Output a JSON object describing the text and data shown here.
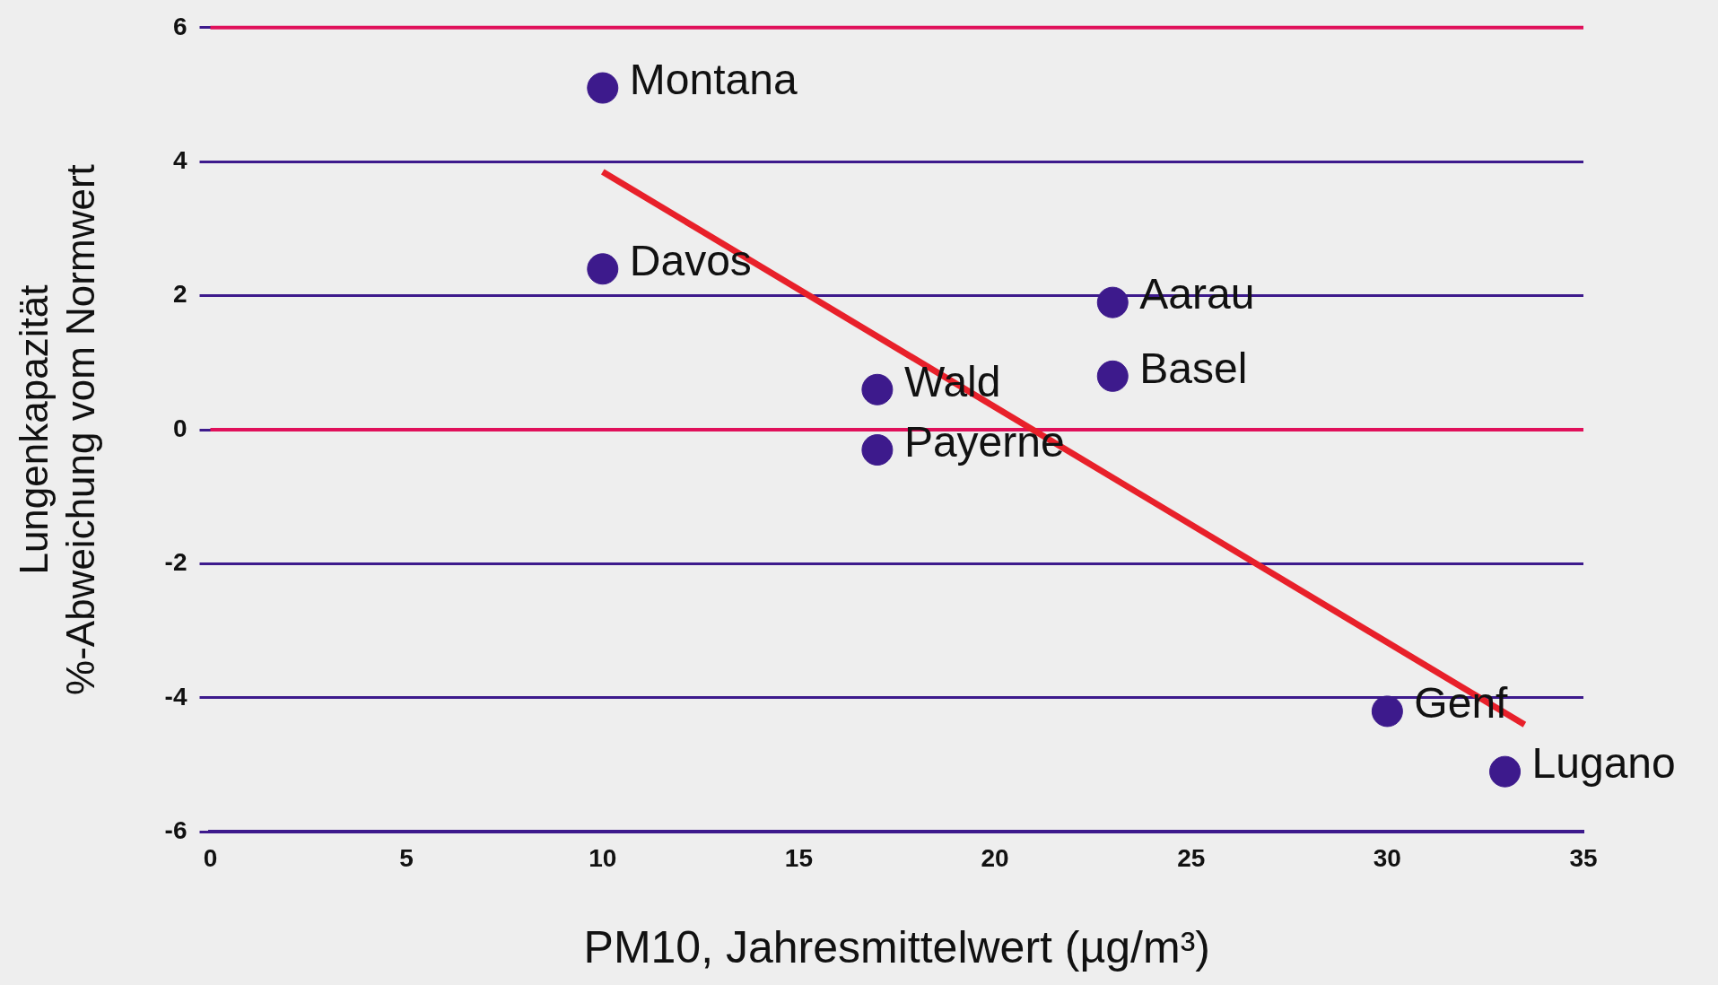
{
  "chart_data": {
    "type": "scatter",
    "xlabel": "PM10, Jahresmittelwert (µg/m³)",
    "ylabel": "Lungenkapazität\n%-Abweichung vom Normwert",
    "series": [
      {
        "color": "#3d1a8c",
        "marker": "circle",
        "x": [
          10,
          10,
          23,
          23,
          17,
          17,
          30,
          33
        ],
        "values": [
          5.1,
          2.4,
          1.9,
          0.8,
          0.6,
          -0.3,
          -4.2,
          -5.1
        ]
      },
      {
        "type": "line",
        "color": "#e8202a",
        "x": [
          10,
          33.5
        ],
        "values": [
          3.85,
          -4.4
        ]
      }
    ],
    "annotations": [
      {
        "text": "Montana",
        "x": 10,
        "y": 5.1
      },
      {
        "text": "Davos",
        "x": 10,
        "y": 2.4
      },
      {
        "text": "Aarau",
        "x": 23,
        "y": 1.9
      },
      {
        "text": "Basel",
        "x": 23,
        "y": 0.8
      },
      {
        "text": "Wald",
        "x": 17,
        "y": 0.6
      },
      {
        "text": "Payerne",
        "x": 17,
        "y": -0.3
      },
      {
        "text": "Genf",
        "x": 30,
        "y": -4.2
      },
      {
        "text": "Lugano",
        "x": 33,
        "y": -5.1
      }
    ],
    "xlim": [
      0,
      35
    ],
    "xticks": [
      0,
      5,
      10,
      15,
      20,
      25,
      30,
      35
    ],
    "ylim": [
      -6,
      6
    ],
    "yticks": [
      -6,
      -4,
      -2,
      0,
      2,
      4,
      6
    ],
    "grid": "y",
    "ref_lines": [
      {
        "axis": "y",
        "value": 0,
        "color": "#e0105a"
      },
      {
        "axis": "y",
        "value": 6,
        "color": "#e0105a"
      }
    ],
    "legend": false
  }
}
